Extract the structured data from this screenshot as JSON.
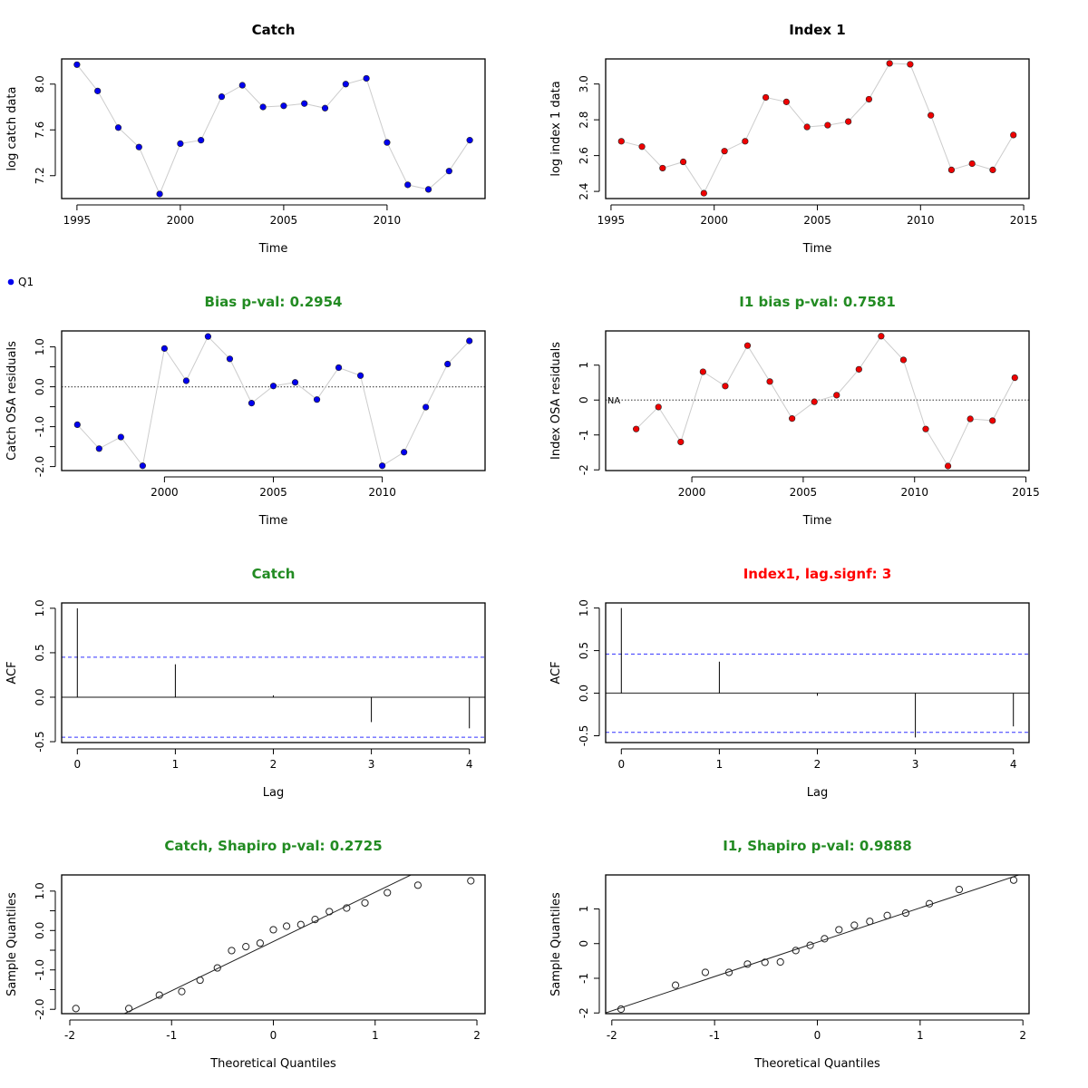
{
  "colors": {
    "catch_points": "#0000ee",
    "index_points": "#ee0000",
    "title_ok": "#228b22",
    "title_warn": "#ff0000",
    "connector": "#cccccc",
    "ci_lines": "#3333ff"
  },
  "legend": {
    "label": "Q1",
    "color": "#0000ee"
  },
  "chart_data": [
    {
      "id": "catch-data",
      "type": "line",
      "title": "Catch",
      "title_color": "#000000",
      "xlabel": "Time",
      "ylabel": "log catch data",
      "x": [
        1995,
        1996,
        1997,
        1998,
        1999,
        2000,
        2001,
        2002,
        2003,
        2004,
        2005,
        2006,
        2007,
        2008,
        2009,
        2010,
        2011,
        2012,
        2013,
        2014
      ],
      "y": [
        8.17,
        7.94,
        7.62,
        7.45,
        7.04,
        7.48,
        7.51,
        7.89,
        7.99,
        7.8,
        7.81,
        7.83,
        7.79,
        8.0,
        8.05,
        7.49,
        7.12,
        7.08,
        7.24,
        7.51
      ],
      "xticks": [
        1995,
        2000,
        2005,
        2010
      ],
      "yticks": [
        7.2,
        7.6,
        8.0
      ],
      "ytick_labels": [
        "7.2",
        "7.6",
        "8.0"
      ],
      "xlim": [
        1994.26,
        2014.74
      ],
      "ylim": [
        7.0,
        8.22
      ],
      "point_color": "#0000ee"
    },
    {
      "id": "index-data",
      "type": "line",
      "title": "Index 1",
      "title_color": "#000000",
      "xlabel": "Time",
      "ylabel": "log index 1 data",
      "x": [
        1995.5,
        1996.5,
        1997.5,
        1998.5,
        1999.5,
        2000.5,
        2001.5,
        2002.5,
        2003.5,
        2004.5,
        2005.5,
        2006.5,
        2007.5,
        2008.5,
        2009.5,
        2010.5,
        2011.5,
        2012.5,
        2013.5,
        2014.5
      ],
      "y": [
        2.68,
        2.65,
        2.53,
        2.565,
        2.39,
        2.625,
        2.68,
        2.925,
        2.9,
        2.76,
        2.77,
        2.79,
        2.915,
        3.115,
        3.11,
        2.825,
        2.52,
        2.555,
        2.52,
        2.715
      ],
      "xticks": [
        1995,
        2000,
        2005,
        2010,
        2015
      ],
      "yticks": [
        2.4,
        2.6,
        2.8,
        3.0
      ],
      "ytick_labels": [
        "2.4",
        "2.6",
        "2.8",
        "3.0"
      ],
      "xlim": [
        1994.74,
        2015.26
      ],
      "ylim": [
        2.36,
        3.14
      ],
      "point_color": "#ee0000"
    },
    {
      "id": "catch-residuals",
      "type": "line",
      "title": "Bias p-val: 0.2954",
      "title_color": "#228b22",
      "xlabel": "Time",
      "ylabel": "Catch OSA residuals",
      "x": [
        1996,
        1997,
        1998,
        1999,
        2000,
        2001,
        2002,
        2003,
        2004,
        2005,
        2006,
        2007,
        2008,
        2009,
        2010,
        2011,
        2012,
        2013,
        2014
      ],
      "y": [
        -0.95,
        -1.55,
        -1.26,
        -1.98,
        0.96,
        0.15,
        1.26,
        0.7,
        -0.41,
        0.02,
        0.11,
        -0.32,
        0.48,
        0.28,
        -1.98,
        -1.64,
        -0.51,
        0.57,
        1.15
      ],
      "xticks": [
        2000,
        2005,
        2010
      ],
      "yticks": [
        -2.0,
        -1.5,
        -1.0,
        -0.5,
        0.0,
        0.5,
        1.0
      ],
      "ytick_labels": [
        "-2.0",
        "",
        "-1.0",
        "",
        "0.0",
        "",
        "1.0"
      ],
      "xlim": [
        1995.28,
        2014.72
      ],
      "ylim": [
        -2.1,
        1.4
      ],
      "reference_line": 0,
      "point_color": "#0000ee"
    },
    {
      "id": "index-residuals",
      "type": "line",
      "title": "I1 bias p-val: 0.7581",
      "title_color": "#228b22",
      "xlabel": "Time",
      "ylabel": "Index OSA residuals",
      "x": [
        1997.5,
        1998.5,
        1999.5,
        2000.5,
        2001.5,
        2002.5,
        2003.5,
        2004.5,
        2005.5,
        2006.5,
        2007.5,
        2008.5,
        2009.5,
        2010.5,
        2011.5,
        2012.5,
        2013.5,
        2014.5
      ],
      "y": [
        -0.83,
        -0.2,
        -1.2,
        0.81,
        0.4,
        1.56,
        0.53,
        -0.53,
        -0.05,
        0.14,
        0.88,
        1.83,
        1.15,
        -0.83,
        -1.89,
        -0.54,
        -0.59,
        0.64
      ],
      "na_label": "NA",
      "na_x": 1996.5,
      "xticks": [
        2000,
        2005,
        2010,
        2015
      ],
      "yticks": [
        -2,
        -1,
        0,
        1
      ],
      "ytick_labels": [
        "-2",
        "-1",
        "0",
        "1"
      ],
      "xlim": [
        1996.13,
        2015.14
      ],
      "ylim": [
        -2.02,
        1.98
      ],
      "reference_line": 0,
      "point_color": "#ee0000"
    },
    {
      "id": "catch-acf",
      "type": "bar",
      "title": "Catch",
      "title_color": "#228b22",
      "xlabel": "Lag",
      "ylabel": "ACF",
      "categories": [
        0,
        1,
        2,
        3,
        4
      ],
      "values": [
        1.0,
        0.37,
        0.02,
        -0.28,
        -0.35
      ],
      "ci": 0.45,
      "xticks": [
        0,
        1,
        2,
        3,
        4
      ],
      "yticks": [
        -0.5,
        0.0,
        0.5,
        1.0
      ],
      "ytick_labels": [
        "-0.5",
        "0.0",
        "0.5",
        "1.0"
      ],
      "xlim": [
        -0.16,
        4.16
      ],
      "ylim": [
        -0.51,
        1.06
      ]
    },
    {
      "id": "index-acf",
      "type": "bar",
      "title": "Index1, lag.signf: 3",
      "title_color": "#ff0000",
      "xlabel": "Lag",
      "ylabel": "ACF",
      "categories": [
        0,
        1,
        2,
        3,
        4
      ],
      "values": [
        1.0,
        0.37,
        -0.03,
        -0.52,
        -0.39
      ],
      "ci": 0.46,
      "xticks": [
        0,
        1,
        2,
        3,
        4
      ],
      "yticks": [
        -0.5,
        0.0,
        0.5,
        1.0
      ],
      "ytick_labels": [
        "-0.5",
        "0.0",
        "0.5",
        "1.0"
      ],
      "xlim": [
        -0.16,
        4.16
      ],
      "ylim": [
        -0.58,
        1.06
      ]
    },
    {
      "id": "catch-qq",
      "type": "scatter",
      "title": "Catch, Shapiro p-val: 0.2725",
      "title_color": "#228b22",
      "xlabel": "Theoretical Quantiles",
      "ylabel": "Sample Quantiles",
      "x": [
        -1.94,
        -1.42,
        -1.12,
        -0.9,
        -0.72,
        -0.55,
        -0.41,
        -0.27,
        -0.13,
        0.0,
        0.13,
        0.27,
        0.41,
        0.55,
        0.72,
        0.9,
        1.12,
        1.42,
        1.94
      ],
      "y": [
        -1.98,
        -1.98,
        -1.64,
        -1.55,
        -1.26,
        -0.95,
        -0.51,
        -0.41,
        -0.32,
        0.02,
        0.11,
        0.15,
        0.28,
        0.48,
        0.57,
        0.7,
        0.96,
        1.15,
        1.26
      ],
      "qq_line": {
        "slope": 1.25,
        "intercept": -0.28
      },
      "xticks": [
        -2,
        -1,
        0,
        1,
        2
      ],
      "yticks": [
        -2.0,
        -1.5,
        -1.0,
        -0.5,
        0.0,
        0.5,
        1.0
      ],
      "ytick_labels": [
        "-2.0",
        "",
        "-1.0",
        "",
        "0.0",
        "",
        "1.0"
      ],
      "xlim": [
        -2.08,
        2.08
      ],
      "ylim": [
        -2.11,
        1.41
      ]
    },
    {
      "id": "index-qq",
      "type": "scatter",
      "title": "I1, Shapiro p-val: 0.9888",
      "title_color": "#228b22",
      "xlabel": "Theoretical Quantiles",
      "ylabel": "Sample Quantiles",
      "x": [
        -1.91,
        -1.38,
        -1.09,
        -0.86,
        -0.68,
        -0.51,
        -0.36,
        -0.21,
        -0.07,
        0.07,
        0.21,
        0.36,
        0.51,
        0.68,
        0.86,
        1.09,
        1.38,
        1.91
      ],
      "y": [
        -1.89,
        -1.2,
        -0.83,
        -0.83,
        -0.59,
        -0.54,
        -0.53,
        -0.2,
        -0.05,
        0.14,
        0.4,
        0.53,
        0.64,
        0.81,
        0.88,
        1.15,
        1.56,
        1.83
      ],
      "qq_line": {
        "slope": 0.99,
        "intercept": 0.04
      },
      "xticks": [
        -2,
        -1,
        0,
        1,
        2
      ],
      "yticks": [
        -2,
        -1,
        0,
        1
      ],
      "ytick_labels": [
        "-2",
        "-1",
        "0",
        "1"
      ],
      "xlim": [
        -2.06,
        2.06
      ],
      "ylim": [
        -2.02,
        1.98
      ]
    }
  ]
}
